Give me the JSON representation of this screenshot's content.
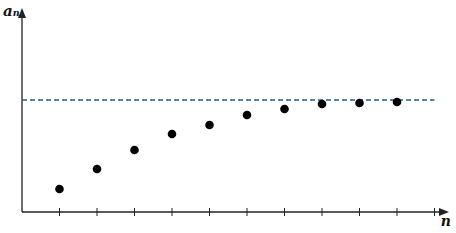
{
  "chart_data": {
    "type": "scatter",
    "x_label": "n",
    "y_label": "aₙ",
    "x": [
      1,
      2,
      3,
      4,
      5,
      6,
      7,
      8,
      9,
      10
    ],
    "values": [
      1.15,
      2.15,
      3.1,
      3.9,
      4.35,
      4.85,
      5.15,
      5.4,
      5.45,
      5.5
    ],
    "color": "#000000",
    "marker": "circle",
    "hline": {
      "value": 5.6,
      "color": "#2b5b88",
      "line_style": "dashed"
    },
    "xlim": [
      0,
      11.28
    ],
    "ylim": [
      0,
      10
    ],
    "xticks": [
      1,
      2,
      3,
      4,
      5,
      6,
      7,
      8,
      9,
      10,
      11
    ],
    "yticks": [],
    "tick_labels": false,
    "grid": false
  }
}
